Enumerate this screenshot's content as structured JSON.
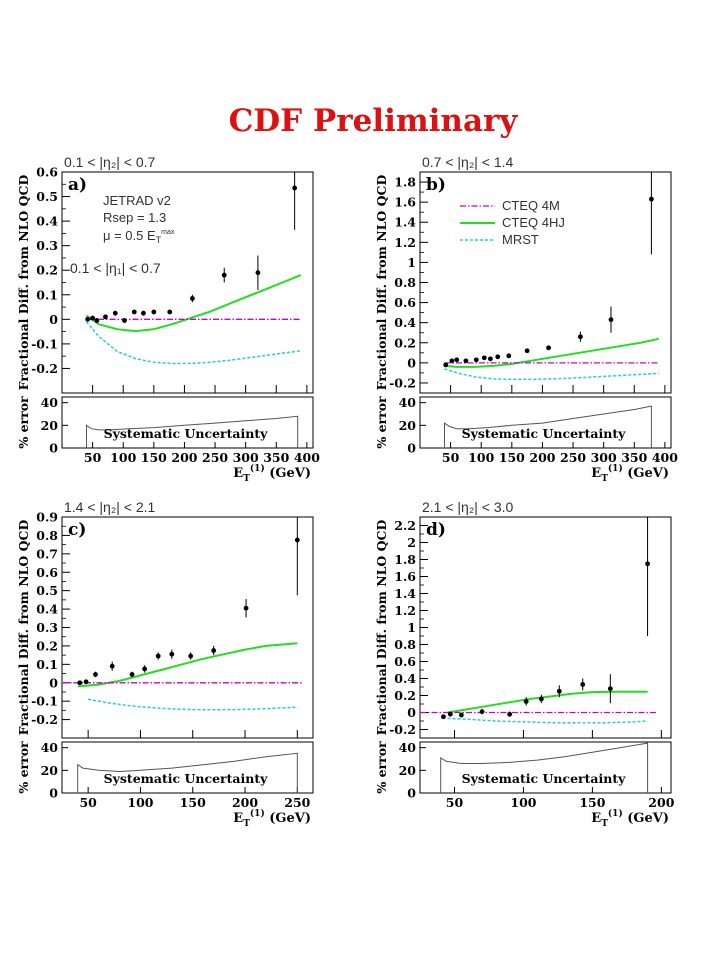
{
  "header": {
    "title": "CDF Preliminary",
    "title_color": "#dd1111"
  },
  "colors": {
    "cteq4m": "#cc00cc",
    "cteq4hj": "#22dd22",
    "mrst": "#22ccdd",
    "points": "#000000",
    "syst": "#555555"
  },
  "common": {
    "ylabel_top": "Fractional Diff. from NLO QCD",
    "ylabel_bottom": "% error",
    "syst_label": "Systematic Uncertainty",
    "xlabel_main": "E",
    "xlabel_sub": "T",
    "xlabel_sup": "(1)",
    "xlabel_unit": " (GeV)"
  },
  "chart_data": [
    {
      "type": "scatter",
      "panel_label": "a)",
      "range_label": "0.1 < |η₂| < 0.7",
      "annotations": [
        "JETRAD v2",
        "Rsep = 1.3",
        "μ = 0.5 E_T^max",
        "0.1 < |η₁| < 0.7"
      ],
      "xlim": [
        0,
        410
      ],
      "ylim": [
        -0.3,
        0.6
      ],
      "xticks": [
        50,
        100,
        150,
        200,
        250,
        300,
        350,
        400
      ],
      "yticks": [
        -0.2,
        -0.1,
        0,
        0.1,
        0.2,
        0.3,
        0.4,
        0.5,
        0.6
      ],
      "points": [
        {
          "x": 42,
          "y": 0.0,
          "e": 0.01
        },
        {
          "x": 50,
          "y": 0.005,
          "e": 0.01
        },
        {
          "x": 57,
          "y": -0.005,
          "e": 0.01
        },
        {
          "x": 71,
          "y": 0.01,
          "e": 0.01
        },
        {
          "x": 87,
          "y": 0.025,
          "e": 0.01
        },
        {
          "x": 102,
          "y": -0.005,
          "e": 0.01
        },
        {
          "x": 118,
          "y": 0.03,
          "e": 0.01
        },
        {
          "x": 133,
          "y": 0.025,
          "e": 0.01
        },
        {
          "x": 150,
          "y": 0.03,
          "e": 0.01
        },
        {
          "x": 176,
          "y": 0.03,
          "e": 0.01
        },
        {
          "x": 213,
          "y": 0.085,
          "e": 0.015
        },
        {
          "x": 265,
          "y": 0.18,
          "e": 0.03
        },
        {
          "x": 320,
          "y": 0.19,
          "e": 0.07
        },
        {
          "x": 380,
          "y": 0.535,
          "e": 0.17
        }
      ],
      "curves": [
        {
          "name": "CTEQ 4HJ",
          "x": [
            40,
            60,
            90,
            120,
            150,
            180,
            210,
            240,
            270,
            300,
            330,
            360,
            390
          ],
          "y": [
            0.015,
            -0.02,
            -0.04,
            -0.048,
            -0.04,
            -0.02,
            0.005,
            0.03,
            0.06,
            0.09,
            0.12,
            0.15,
            0.18
          ]
        },
        {
          "name": "MRST",
          "x": [
            40,
            60,
            90,
            120,
            150,
            180,
            210,
            240,
            270,
            300,
            330,
            360,
            390
          ],
          "y": [
            -0.01,
            -0.07,
            -0.13,
            -0.16,
            -0.175,
            -0.18,
            -0.18,
            -0.175,
            -0.168,
            -0.158,
            -0.148,
            -0.138,
            -0.128
          ]
        },
        {
          "name": "CTEQ 4M",
          "x": [
            40,
            390
          ],
          "y": [
            0,
            0
          ]
        }
      ],
      "syst": {
        "xlim": [
          0,
          410
        ],
        "x": [
          40,
          48,
          60,
          80,
          110,
          150,
          200,
          250,
          300,
          350,
          385
        ],
        "y": [
          20,
          17,
          16,
          16,
          17,
          18,
          20,
          22,
          24,
          26,
          28
        ],
        "x_end": 385
      },
      "syst_ylim": [
        0,
        45
      ],
      "syst_yticks": [
        0,
        20,
        40
      ]
    },
    {
      "type": "scatter",
      "panel_label": "b)",
      "range_label": "0.7 < |η₂| < 1.4",
      "legend": [
        "CTEQ 4M",
        "CTEQ 4HJ",
        "MRST"
      ],
      "xlim": [
        0,
        410
      ],
      "ylim": [
        -0.3,
        1.9
      ],
      "xticks": [
        50,
        100,
        150,
        200,
        250,
        300,
        350,
        400
      ],
      "yticks": [
        -0.2,
        0,
        0.2,
        0.4,
        0.6,
        0.8,
        1,
        1.2,
        1.4,
        1.6,
        1.8
      ],
      "points": [
        {
          "x": 42,
          "y": -0.02,
          "e": 0.015
        },
        {
          "x": 52,
          "y": 0.02,
          "e": 0.01
        },
        {
          "x": 60,
          "y": 0.03,
          "e": 0.01
        },
        {
          "x": 75,
          "y": 0.02,
          "e": 0.01
        },
        {
          "x": 92,
          "y": 0.03,
          "e": 0.01
        },
        {
          "x": 105,
          "y": 0.05,
          "e": 0.01
        },
        {
          "x": 115,
          "y": 0.04,
          "e": 0.01
        },
        {
          "x": 127,
          "y": 0.06,
          "e": 0.01
        },
        {
          "x": 145,
          "y": 0.07,
          "e": 0.01
        },
        {
          "x": 175,
          "y": 0.12,
          "e": 0.015
        },
        {
          "x": 210,
          "y": 0.15,
          "e": 0.02
        },
        {
          "x": 262,
          "y": 0.26,
          "e": 0.05
        },
        {
          "x": 312,
          "y": 0.43,
          "e": 0.13
        },
        {
          "x": 378,
          "y": 1.63,
          "e": 0.55
        }
      ],
      "curves": [
        {
          "name": "CTEQ 4HJ",
          "x": [
            40,
            60,
            90,
            120,
            150,
            180,
            210,
            240,
            270,
            300,
            330,
            360,
            390
          ],
          "y": [
            -0.03,
            -0.04,
            -0.04,
            -0.03,
            -0.01,
            0.02,
            0.05,
            0.08,
            0.11,
            0.14,
            0.17,
            0.2,
            0.24
          ]
        },
        {
          "name": "MRST",
          "x": [
            40,
            60,
            90,
            120,
            150,
            180,
            210,
            240,
            270,
            300,
            330,
            360,
            390
          ],
          "y": [
            -0.06,
            -0.1,
            -0.14,
            -0.16,
            -0.165,
            -0.165,
            -0.16,
            -0.155,
            -0.145,
            -0.135,
            -0.125,
            -0.115,
            -0.105
          ]
        },
        {
          "name": "CTEQ 4M",
          "x": [
            40,
            390
          ],
          "y": [
            0,
            0
          ]
        }
      ],
      "syst": {
        "xlim": [
          0,
          410
        ],
        "x": [
          40,
          48,
          60,
          80,
          110,
          150,
          200,
          250,
          300,
          350,
          378
        ],
        "y": [
          22,
          19,
          17,
          17,
          18,
          20,
          22,
          26,
          30,
          34,
          37
        ],
        "x_end": 378
      },
      "syst_ylim": [
        0,
        45
      ],
      "syst_yticks": [
        0,
        20,
        40
      ]
    },
    {
      "type": "scatter",
      "panel_label": "c)",
      "range_label": "1.4 < |η₂| < 2.1",
      "xlim": [
        25,
        265
      ],
      "ylim": [
        -0.3,
        0.9
      ],
      "xticks": [
        50,
        100,
        150,
        200,
        250
      ],
      "yticks": [
        -0.2,
        -0.1,
        0,
        0.1,
        0.2,
        0.3,
        0.4,
        0.5,
        0.6,
        0.7,
        0.8,
        0.9
      ],
      "points": [
        {
          "x": 42,
          "y": 0.0,
          "e": 0.01
        },
        {
          "x": 48,
          "y": 0.005,
          "e": 0.01
        },
        {
          "x": 57,
          "y": 0.045,
          "e": 0.015
        },
        {
          "x": 73,
          "y": 0.09,
          "e": 0.025
        },
        {
          "x": 92,
          "y": 0.045,
          "e": 0.015
        },
        {
          "x": 104,
          "y": 0.075,
          "e": 0.02
        },
        {
          "x": 117,
          "y": 0.145,
          "e": 0.02
        },
        {
          "x": 130,
          "y": 0.155,
          "e": 0.025
        },
        {
          "x": 148,
          "y": 0.145,
          "e": 0.02
        },
        {
          "x": 170,
          "y": 0.175,
          "e": 0.025
        },
        {
          "x": 201,
          "y": 0.405,
          "e": 0.05
        },
        {
          "x": 250,
          "y": 0.775,
          "e": 0.3
        }
      ],
      "curves": [
        {
          "name": "CTEQ 4HJ",
          "x": [
            40,
            60,
            80,
            100,
            120,
            140,
            160,
            180,
            200,
            220,
            240,
            250
          ],
          "y": [
            -0.02,
            -0.01,
            0.01,
            0.04,
            0.07,
            0.1,
            0.13,
            0.155,
            0.18,
            0.2,
            0.21,
            0.215
          ]
        },
        {
          "name": "MRST",
          "x": [
            50,
            70,
            90,
            110,
            130,
            150,
            170,
            190,
            210,
            230,
            250
          ],
          "y": [
            -0.09,
            -0.11,
            -0.125,
            -0.135,
            -0.142,
            -0.146,
            -0.147,
            -0.146,
            -0.143,
            -0.138,
            -0.133
          ]
        },
        {
          "name": "CTEQ 4M",
          "x": [
            25,
            255
          ],
          "y": [
            0,
            0
          ]
        }
      ],
      "syst": {
        "xlim": [
          25,
          265
        ],
        "x": [
          40,
          45,
          60,
          80,
          100,
          130,
          160,
          190,
          220,
          250
        ],
        "y": [
          25,
          22,
          20,
          19,
          20,
          22,
          25,
          28,
          32,
          35
        ],
        "x_end": 250
      },
      "syst_ylim": [
        0,
        45
      ],
      "syst_yticks": [
        0,
        20,
        40
      ]
    },
    {
      "type": "scatter",
      "panel_label": "d)",
      "range_label": "2.1 < |η₂| < 3.0",
      "xlim": [
        25,
        207
      ],
      "ylim": [
        -0.3,
        2.3
      ],
      "xticks": [
        50,
        100,
        150,
        200
      ],
      "yticks": [
        -0.2,
        0,
        0.2,
        0.4,
        0.6,
        0.8,
        1,
        1.2,
        1.4,
        1.6,
        1.8,
        2,
        2.2
      ],
      "points": [
        {
          "x": 42,
          "y": -0.05,
          "e": 0.02
        },
        {
          "x": 47,
          "y": -0.02,
          "e": 0.02
        },
        {
          "x": 55,
          "y": -0.03,
          "e": 0.02
        },
        {
          "x": 70,
          "y": 0.01,
          "e": 0.03
        },
        {
          "x": 90,
          "y": -0.02,
          "e": 0.03
        },
        {
          "x": 102,
          "y": 0.13,
          "e": 0.05
        },
        {
          "x": 113,
          "y": 0.16,
          "e": 0.05
        },
        {
          "x": 126,
          "y": 0.25,
          "e": 0.07
        },
        {
          "x": 143,
          "y": 0.33,
          "e": 0.07
        },
        {
          "x": 163,
          "y": 0.28,
          "e": 0.17
        },
        {
          "x": 190,
          "y": 1.75,
          "e": 0.85
        }
      ],
      "curves": [
        {
          "name": "CTEQ 4HJ",
          "x": [
            45,
            60,
            75,
            90,
            105,
            120,
            135,
            150,
            165,
            180,
            190
          ],
          "y": [
            0.0,
            0.04,
            0.08,
            0.12,
            0.16,
            0.19,
            0.22,
            0.24,
            0.245,
            0.245,
            0.245
          ]
        },
        {
          "name": "MRST",
          "x": [
            45,
            60,
            80,
            100,
            120,
            140,
            160,
            180,
            190
          ],
          "y": [
            -0.07,
            -0.08,
            -0.1,
            -0.11,
            -0.12,
            -0.12,
            -0.12,
            -0.11,
            -0.1
          ]
        },
        {
          "name": "CTEQ 4M",
          "x": [
            25,
            197
          ],
          "y": [
            0,
            0
          ]
        }
      ],
      "syst": {
        "xlim": [
          25,
          207
        ],
        "x": [
          40,
          44,
          55,
          70,
          90,
          110,
          130,
          150,
          170,
          190
        ],
        "y": [
          31,
          28,
          26,
          26,
          27,
          29,
          32,
          36,
          40,
          44
        ],
        "x_end": 190
      },
      "syst_ylim": [
        0,
        45
      ],
      "syst_yticks": [
        0,
        20,
        40
      ]
    }
  ]
}
